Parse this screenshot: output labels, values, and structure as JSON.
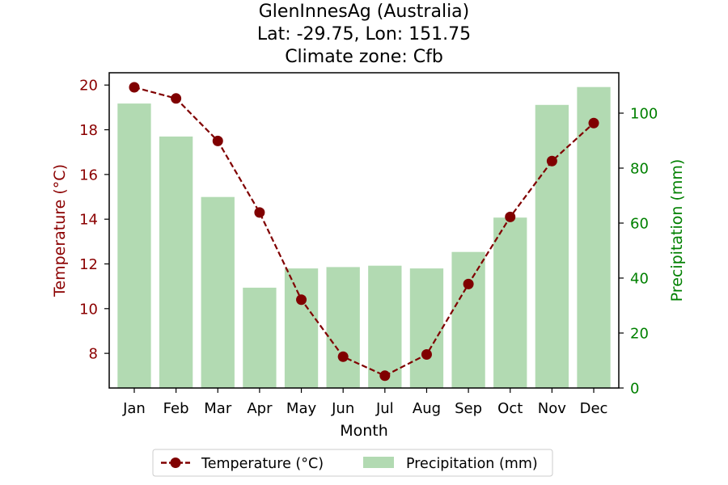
{
  "chart_data": {
    "type": "bar+line",
    "title_lines": [
      "GlenInnesAg (Australia)",
      "Lat: -29.75, Lon: 151.75",
      "Climate zone: Cfb"
    ],
    "xlabel": "Month",
    "ylabel_left": "Temperature (°C)",
    "ylabel_right": "Precipitation (mm)",
    "categories": [
      "Jan",
      "Feb",
      "Mar",
      "Apr",
      "May",
      "Jun",
      "Jul",
      "Aug",
      "Sep",
      "Oct",
      "Nov",
      "Dec"
    ],
    "temperature": {
      "name": "Temperature (°C)",
      "values": [
        19.9,
        19.4,
        17.5,
        14.3,
        10.4,
        7.85,
        7.0,
        7.95,
        11.1,
        14.1,
        16.6,
        18.3
      ],
      "ylim": [
        6.45,
        20.55
      ],
      "ticks": [
        8,
        10,
        12,
        14,
        16,
        18,
        20
      ],
      "color": "#800000"
    },
    "precipitation": {
      "name": "Precipitation (mm)",
      "values": [
        103.5,
        91.5,
        69.5,
        36.5,
        43.5,
        44.0,
        44.5,
        43.5,
        49.5,
        62.0,
        103.0,
        109.5
      ],
      "ylim": [
        0,
        114.7
      ],
      "ticks": [
        0,
        20,
        40,
        60,
        80,
        100
      ],
      "color": "#b2dab2"
    },
    "left_axis_color": "#8b0000",
    "right_axis_color": "#008000",
    "legend_position": "bottom-center"
  }
}
